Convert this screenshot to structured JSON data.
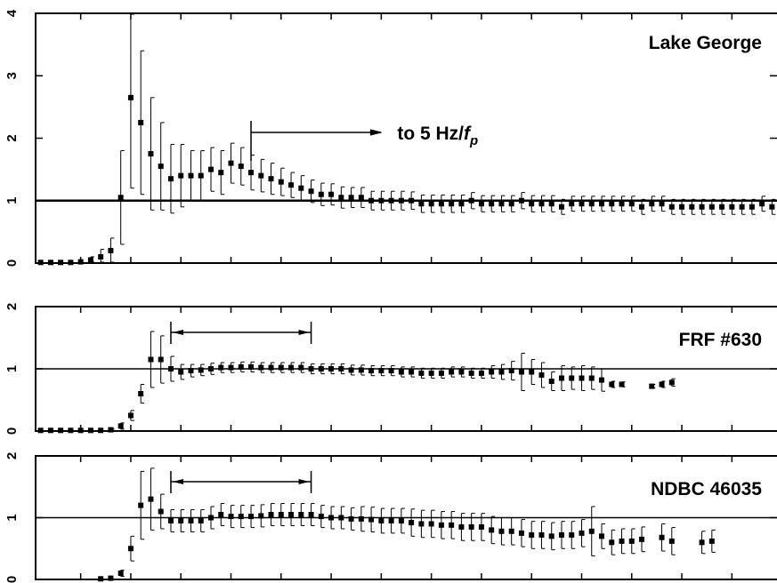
{
  "chart_data": [
    {
      "type": "scatter",
      "panel_label": "Lake George",
      "error_bars": true,
      "reference_line": 1,
      "ylim": [
        0,
        4
      ],
      "yticks": [
        "0",
        "1",
        "2",
        "3",
        "4"
      ],
      "annotation": {
        "text_main": "to 5 Hz/",
        "text_f": "f",
        "text_sub": "p",
        "x_from": 22,
        "x_to": 35
      },
      "x": [
        1,
        2,
        3,
        4,
        5,
        6,
        7,
        8,
        9,
        10,
        11,
        12,
        13,
        14,
        15,
        16,
        17,
        18,
        19,
        20,
        21,
        22,
        23,
        24,
        25,
        26,
        27,
        28,
        29,
        30,
        31,
        32,
        33,
        34,
        35,
        36,
        37,
        38,
        39,
        40,
        41,
        42,
        43,
        44,
        45,
        46,
        47,
        48,
        49,
        50,
        51,
        52,
        53,
        54,
        55,
        56,
        57,
        58,
        59,
        60,
        61,
        62,
        63,
        64,
        65,
        66,
        67,
        68,
        69,
        70,
        71,
        72,
        73,
        74
      ],
      "values": [
        0.01,
        0.01,
        0.01,
        0.01,
        0.02,
        0.05,
        0.1,
        0.2,
        1.05,
        2.65,
        2.25,
        1.75,
        1.55,
        1.35,
        1.4,
        1.4,
        1.4,
        1.5,
        1.45,
        1.6,
        1.55,
        1.45,
        1.4,
        1.35,
        1.3,
        1.25,
        1.2,
        1.15,
        1.1,
        1.1,
        1.05,
        1.05,
        1.05,
        1.0,
        1.0,
        1.0,
        1.0,
        1.0,
        0.95,
        0.95,
        0.95,
        0.95,
        0.95,
        1.0,
        0.95,
        0.95,
        0.95,
        0.95,
        1.0,
        0.95,
        0.95,
        0.95,
        0.9,
        0.95,
        0.95,
        0.95,
        0.95,
        0.95,
        0.95,
        0.95,
        0.9,
        0.95,
        0.95,
        0.9,
        0.9,
        0.9,
        0.9,
        0.9,
        0.9,
        0.9,
        0.9,
        0.9,
        0.95,
        0.9
      ],
      "errors": [
        0,
        0,
        0,
        0,
        0,
        0.05,
        0.12,
        0.2,
        0.75,
        1.45,
        1.15,
        0.9,
        0.7,
        0.55,
        0.5,
        0.4,
        0.4,
        0.35,
        0.35,
        0.32,
        0.3,
        0.28,
        0.26,
        0.25,
        0.22,
        0.2,
        0.2,
        0.18,
        0.18,
        0.17,
        0.17,
        0.16,
        0.16,
        0.15,
        0.15,
        0.15,
        0.15,
        0.14,
        0.14,
        0.14,
        0.14,
        0.14,
        0.14,
        0.13,
        0.13,
        0.13,
        0.13,
        0.13,
        0.13,
        0.13,
        0.13,
        0.13,
        0.12,
        0.12,
        0.12,
        0.12,
        0.12,
        0.12,
        0.12,
        0.12,
        0.12,
        0.12,
        0.12,
        0.12,
        0.12,
        0.12,
        0.12,
        0.12,
        0.12,
        0.12,
        0.12,
        0.12,
        0.12,
        0.12
      ]
    },
    {
      "type": "scatter",
      "panel_label": "FRF #630",
      "error_bars": true,
      "reference_line": 1,
      "ylim": [
        0,
        2
      ],
      "yticks": [
        "0",
        "1",
        "2"
      ],
      "annotation": {
        "x_from": 14,
        "x_to": 28
      },
      "x": [
        1,
        2,
        3,
        4,
        5,
        6,
        7,
        8,
        9,
        10,
        11,
        12,
        13,
        14,
        15,
        16,
        17,
        18,
        19,
        20,
        21,
        22,
        23,
        24,
        25,
        26,
        27,
        28,
        29,
        30,
        31,
        32,
        33,
        34,
        35,
        36,
        37,
        38,
        39,
        40,
        41,
        42,
        43,
        44,
        45,
        46,
        47,
        48,
        49,
        50,
        51,
        52,
        53,
        54,
        55,
        56,
        57,
        58,
        59,
        60,
        61,
        62,
        63,
        64,
        65,
        66,
        67,
        68,
        69
      ],
      "values": [
        0.01,
        0.01,
        0.01,
        0.01,
        0.01,
        0.01,
        0.01,
        0.02,
        0.08,
        0.25,
        0.6,
        1.15,
        1.15,
        1.0,
        0.95,
        0.97,
        0.98,
        1.0,
        1.02,
        1.02,
        1.03,
        1.03,
        1.02,
        1.02,
        1.02,
        1.02,
        1.02,
        1.0,
        1.0,
        1.0,
        1.0,
        0.98,
        0.98,
        0.97,
        0.97,
        0.97,
        0.95,
        0.95,
        0.93,
        0.93,
        0.93,
        0.95,
        0.95,
        0.93,
        0.93,
        0.95,
        0.95,
        0.97,
        0.95,
        0.95,
        0.9,
        0.8,
        0.85,
        0.85,
        0.85,
        0.85,
        0.82,
        0.75,
        0.75,
        null,
        null,
        0.72,
        0.75,
        0.78,
        null,
        null,
        null,
        null,
        null
      ],
      "errors": [
        0,
        0,
        0,
        0,
        0,
        0,
        0,
        0.02,
        0.05,
        0.08,
        0.15,
        0.45,
        0.38,
        0.2,
        0.12,
        0.1,
        0.09,
        0.09,
        0.08,
        0.08,
        0.08,
        0.08,
        0.08,
        0.08,
        0.08,
        0.08,
        0.08,
        0.08,
        0.08,
        0.08,
        0.08,
        0.08,
        0.08,
        0.08,
        0.08,
        0.08,
        0.08,
        0.08,
        0.08,
        0.08,
        0.08,
        0.08,
        0.08,
        0.08,
        0.08,
        0.1,
        0.12,
        0.15,
        0.3,
        0.2,
        0.2,
        0.15,
        0.2,
        0.18,
        0.2,
        0.18,
        0.18,
        0.05,
        0.04,
        0,
        0,
        0.03,
        0.05,
        0.06,
        0,
        0,
        0,
        0,
        0
      ]
    },
    {
      "type": "scatter",
      "panel_label": "NDBC 46035",
      "error_bars": true,
      "reference_line": 1,
      "ylim": [
        0,
        2
      ],
      "yticks": [
        "0",
        "1",
        "2"
      ],
      "annotation": {
        "x_from": 14,
        "x_to": 28
      },
      "x": [
        7,
        8,
        9,
        10,
        11,
        12,
        13,
        14,
        15,
        16,
        17,
        18,
        19,
        20,
        21,
        22,
        23,
        24,
        25,
        26,
        27,
        28,
        29,
        30,
        31,
        32,
        33,
        34,
        35,
        36,
        37,
        38,
        39,
        40,
        41,
        42,
        43,
        44,
        45,
        46,
        47,
        48,
        49,
        50,
        51,
        52,
        53,
        54,
        55,
        56,
        57,
        58,
        59,
        60,
        61,
        62,
        63,
        64,
        65,
        66,
        67,
        68,
        69
      ],
      "values": [
        0.01,
        0.02,
        0.1,
        0.5,
        1.2,
        1.3,
        1.1,
        0.95,
        0.95,
        0.95,
        0.95,
        1.0,
        1.05,
        1.02,
        1.02,
        1.02,
        1.03,
        1.05,
        1.05,
        1.05,
        1.05,
        1.05,
        1.02,
        1.0,
        1.0,
        0.98,
        0.98,
        0.97,
        0.95,
        0.95,
        0.95,
        0.92,
        0.9,
        0.9,
        0.88,
        0.88,
        0.85,
        0.85,
        0.85,
        0.8,
        0.78,
        0.78,
        0.75,
        0.72,
        0.72,
        0.7,
        0.72,
        0.72,
        0.75,
        0.78,
        0.7,
        0.6,
        0.62,
        0.62,
        0.65,
        null,
        0.68,
        0.62,
        null,
        null,
        0.6,
        0.62,
        null
      ],
      "errors": [
        0,
        0,
        0.05,
        0.2,
        0.55,
        0.5,
        0.28,
        0.18,
        0.18,
        0.18,
        0.18,
        0.18,
        0.18,
        0.18,
        0.18,
        0.18,
        0.18,
        0.18,
        0.18,
        0.18,
        0.18,
        0.18,
        0.18,
        0.18,
        0.18,
        0.18,
        0.2,
        0.2,
        0.2,
        0.2,
        0.2,
        0.22,
        0.22,
        0.22,
        0.22,
        0.22,
        0.22,
        0.22,
        0.22,
        0.22,
        0.22,
        0.22,
        0.22,
        0.22,
        0.22,
        0.22,
        0.22,
        0.22,
        0.22,
        0.4,
        0.2,
        0.2,
        0.2,
        0.2,
        0.2,
        0,
        0.22,
        0.22,
        0,
        0,
        0.18,
        0.18,
        0
      ]
    }
  ]
}
